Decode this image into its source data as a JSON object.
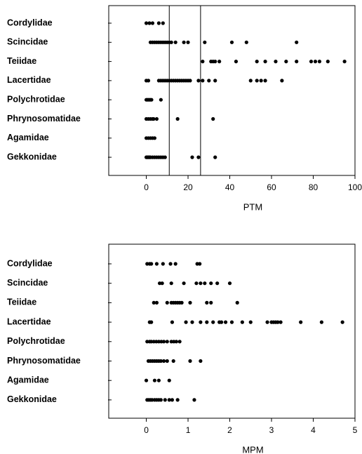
{
  "chart_data": [
    {
      "type": "strip",
      "xlabel": "PTM",
      "categories": [
        "Cordylidae",
        "Scincidae",
        "Teiidae",
        "Lacertidae",
        "Polychrotidae",
        "Phrynosomatidae",
        "Agamidae",
        "Gekkonidae"
      ],
      "values": [
        [
          0,
          1.5,
          3,
          6,
          8
        ],
        [
          2,
          3,
          4,
          5,
          6,
          7,
          8,
          9,
          10,
          11,
          12,
          14,
          18,
          20,
          28,
          41,
          48,
          72
        ],
        [
          27,
          31,
          32,
          33,
          35,
          43,
          53,
          57,
          62,
          67,
          72,
          79,
          81,
          83,
          87,
          95
        ],
        [
          0,
          1,
          6,
          7,
          8,
          9,
          10,
          11,
          12,
          13,
          14,
          15,
          16,
          17,
          18,
          19,
          20,
          21,
          25,
          27,
          30,
          33,
          50,
          53,
          55,
          57,
          65
        ],
        [
          0,
          0.5,
          1,
          1.5,
          2,
          2.5,
          7
        ],
        [
          0,
          1,
          2,
          3,
          3.5,
          5,
          15,
          32
        ],
        [
          0,
          1,
          2,
          3,
          4
        ],
        [
          0,
          0.5,
          1,
          1.5,
          2,
          3,
          4,
          5,
          6,
          7,
          8,
          9,
          22,
          25,
          33
        ]
      ],
      "color": "#000000",
      "xlim": [
        -18,
        100
      ],
      "xticks": [
        0,
        20,
        40,
        60,
        80,
        100
      ],
      "vlines": [
        11,
        26
      ]
    },
    {
      "type": "strip",
      "xlabel": "MPM",
      "categories": [
        "Cordylidae",
        "Scincidae",
        "Teiidae",
        "Lacertidae",
        "Polychrotidae",
        "Phrynosomatidae",
        "Agamidae",
        "Gekkonidae"
      ],
      "values": [
        [
          0.02,
          0.08,
          0.12,
          0.25,
          0.4,
          0.58,
          0.7,
          1.22,
          1.28
        ],
        [
          0.32,
          0.38,
          0.6,
          0.9,
          1.2,
          1.3,
          1.4,
          1.55,
          1.7,
          2.0
        ],
        [
          0.18,
          0.25,
          0.5,
          0.6,
          0.65,
          0.7,
          0.75,
          0.8,
          0.85,
          1.05,
          1.45,
          1.55,
          2.18
        ],
        [
          0.08,
          0.12,
          0.62,
          0.95,
          1.1,
          1.3,
          1.45,
          1.6,
          1.75,
          1.8,
          1.9,
          2.05,
          2.3,
          2.5,
          2.9,
          3.0,
          3.05,
          3.1,
          3.15,
          3.22,
          3.7,
          4.2,
          4.7
        ],
        [
          0.02,
          0.08,
          0.12,
          0.18,
          0.24,
          0.3,
          0.36,
          0.42,
          0.5,
          0.6,
          0.66,
          0.72,
          0.8
        ],
        [
          0.05,
          0.1,
          0.15,
          0.2,
          0.25,
          0.3,
          0.35,
          0.42,
          0.5,
          0.65,
          1.05,
          1.3
        ],
        [
          0,
          0.2,
          0.3,
          0.55
        ],
        [
          0.02,
          0.06,
          0.1,
          0.14,
          0.2,
          0.25,
          0.3,
          0.35,
          0.45,
          0.55,
          0.62,
          0.75,
          1.15
        ]
      ],
      "color": "#000000",
      "xlim": [
        -0.9,
        5
      ],
      "xticks": [
        0,
        1,
        2,
        3,
        4,
        5
      ]
    }
  ]
}
